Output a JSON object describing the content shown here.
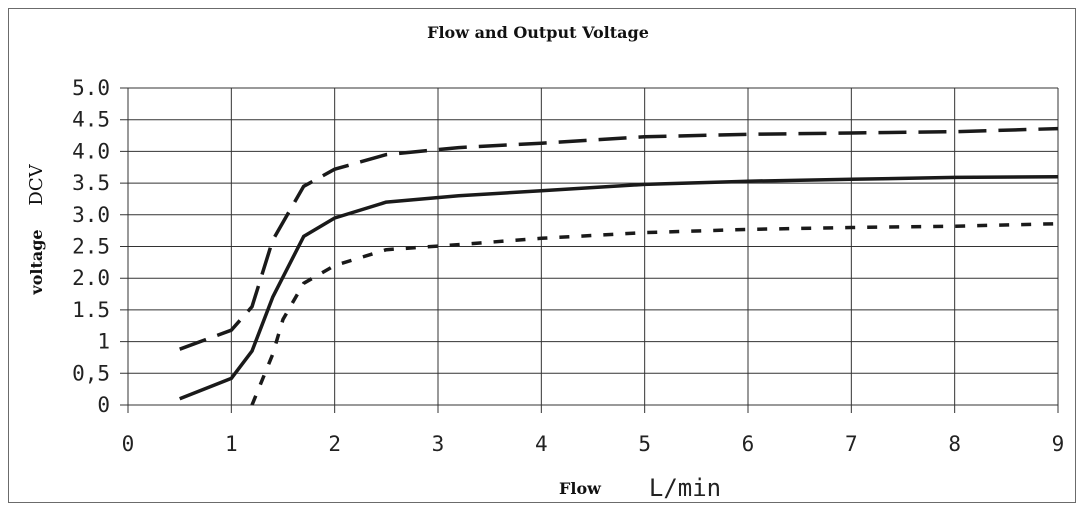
{
  "chart_data": {
    "type": "line",
    "title": "Flow and Output Voltage",
    "xlabel": "Flow",
    "xunit": "L/min",
    "ylabel": "voltage",
    "yunit": "DCV",
    "xlim": [
      0,
      9
    ],
    "ylim": [
      0,
      5
    ],
    "grid": true,
    "x_ticks": [
      {
        "v": 0,
        "label": "0"
      },
      {
        "v": 1,
        "label": "1"
      },
      {
        "v": 2,
        "label": "2"
      },
      {
        "v": 3,
        "label": "3"
      },
      {
        "v": 4,
        "label": "4"
      },
      {
        "v": 5,
        "label": "5"
      },
      {
        "v": 6,
        "label": "6"
      },
      {
        "v": 7,
        "label": "7"
      },
      {
        "v": 8,
        "label": "8"
      },
      {
        "v": 9,
        "label": "9"
      }
    ],
    "y_ticks": [
      {
        "v": 0,
        "label": "0"
      },
      {
        "v": 0.5,
        "label": "0,5"
      },
      {
        "v": 1,
        "label": "1"
      },
      {
        "v": 1.5,
        "label": "1.5"
      },
      {
        "v": 2,
        "label": "2.0"
      },
      {
        "v": 2.5,
        "label": "2.5"
      },
      {
        "v": 3,
        "label": "3.0"
      },
      {
        "v": 3.5,
        "label": "3.5"
      },
      {
        "v": 4,
        "label": "4.0"
      },
      {
        "v": 4.5,
        "label": "4.5"
      },
      {
        "v": 5,
        "label": "5.0"
      }
    ],
    "series": [
      {
        "style": "long-dash",
        "color": "#1a1a1a",
        "points": [
          [
            0.5,
            0.88
          ],
          [
            1.0,
            1.18
          ],
          [
            1.2,
            1.55
          ],
          [
            1.4,
            2.6
          ],
          [
            1.7,
            3.45
          ],
          [
            2.0,
            3.72
          ],
          [
            2.5,
            3.95
          ],
          [
            3.2,
            4.06
          ],
          [
            4.0,
            4.13
          ],
          [
            5.0,
            4.23
          ],
          [
            6.0,
            4.27
          ],
          [
            7.0,
            4.29
          ],
          [
            8.0,
            4.31
          ],
          [
            9.0,
            4.36
          ]
        ]
      },
      {
        "style": "solid",
        "color": "#1a1a1a",
        "points": [
          [
            0.5,
            0.1
          ],
          [
            1.0,
            0.42
          ],
          [
            1.2,
            0.85
          ],
          [
            1.4,
            1.7
          ],
          [
            1.7,
            2.66
          ],
          [
            2.0,
            2.95
          ],
          [
            2.5,
            3.2
          ],
          [
            3.2,
            3.3
          ],
          [
            4.0,
            3.38
          ],
          [
            5.0,
            3.48
          ],
          [
            6.0,
            3.53
          ],
          [
            7.0,
            3.56
          ],
          [
            8.0,
            3.59
          ],
          [
            9.0,
            3.6
          ]
        ]
      },
      {
        "style": "short-dash",
        "color": "#1a1a1a",
        "points": [
          [
            1.2,
            0.0
          ],
          [
            1.4,
            0.8
          ],
          [
            1.5,
            1.35
          ],
          [
            1.7,
            1.92
          ],
          [
            2.0,
            2.2
          ],
          [
            2.5,
            2.45
          ],
          [
            3.2,
            2.53
          ],
          [
            4.0,
            2.63
          ],
          [
            5.0,
            2.72
          ],
          [
            6.0,
            2.77
          ],
          [
            7.0,
            2.8
          ],
          [
            8.0,
            2.82
          ],
          [
            9.0,
            2.86
          ]
        ]
      }
    ]
  }
}
